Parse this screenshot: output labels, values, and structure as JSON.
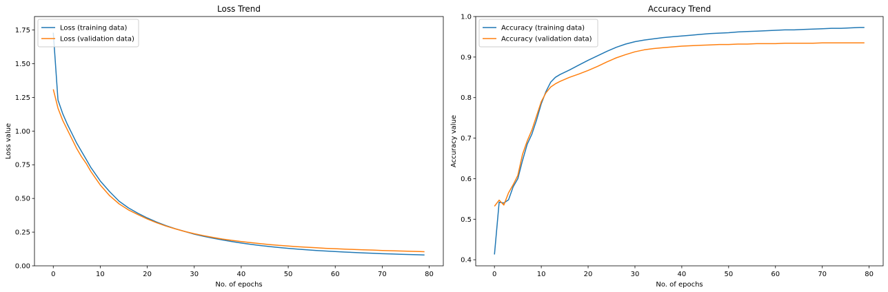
{
  "chart_data": [
    {
      "type": "line",
      "title": "Loss Trend",
      "xlabel": "No. of epochs",
      "ylabel": "Loss value",
      "xlim": [
        -4,
        83
      ],
      "ylim": [
        0,
        1.85
      ],
      "xticks": [
        "0",
        "10",
        "20",
        "30",
        "40",
        "50",
        "60",
        "70",
        "80"
      ],
      "yticks": [
        "0.00",
        "0.25",
        "0.50",
        "0.75",
        "1.00",
        "1.25",
        "1.50",
        "1.75"
      ],
      "legend_position": "upper-left",
      "grid": false,
      "x_points": [
        0,
        1,
        2,
        3,
        4,
        5,
        6,
        7,
        8,
        9,
        10,
        12,
        14,
        16,
        18,
        20,
        22,
        24,
        26,
        28,
        30,
        32,
        34,
        36,
        38,
        40,
        42,
        44,
        46,
        48,
        50,
        52,
        54,
        56,
        58,
        60,
        62,
        64,
        66,
        68,
        70,
        72,
        74,
        76,
        78,
        79
      ],
      "series": [
        {
          "name": "Loss (training data)",
          "color": "#1f77b4",
          "values": [
            1.73,
            1.23,
            1.13,
            1.05,
            0.98,
            0.91,
            0.85,
            0.79,
            0.73,
            0.68,
            0.63,
            0.55,
            0.48,
            0.43,
            0.39,
            0.355,
            0.325,
            0.298,
            0.275,
            0.255,
            0.235,
            0.219,
            0.205,
            0.192,
            0.18,
            0.169,
            0.16,
            0.151,
            0.143,
            0.136,
            0.13,
            0.124,
            0.119,
            0.114,
            0.11,
            0.106,
            0.102,
            0.099,
            0.096,
            0.093,
            0.09,
            0.088,
            0.086,
            0.084,
            0.082,
            0.081
          ]
        },
        {
          "name": "Loss (validation data)",
          "color": "#ff7f0e",
          "values": [
            1.31,
            1.17,
            1.08,
            1.01,
            0.94,
            0.87,
            0.81,
            0.76,
            0.7,
            0.65,
            0.6,
            0.52,
            0.46,
            0.415,
            0.38,
            0.348,
            0.32,
            0.295,
            0.274,
            0.255,
            0.238,
            0.224,
            0.211,
            0.199,
            0.189,
            0.18,
            0.172,
            0.165,
            0.158,
            0.152,
            0.147,
            0.142,
            0.138,
            0.134,
            0.13,
            0.127,
            0.124,
            0.121,
            0.119,
            0.117,
            0.114,
            0.112,
            0.11,
            0.108,
            0.106,
            0.105
          ]
        }
      ]
    },
    {
      "type": "line",
      "title": "Accuracy Trend",
      "xlabel": "No. of epochs",
      "ylabel": "Accuracy value",
      "xlim": [
        -4,
        83
      ],
      "ylim": [
        0.385,
        1.0
      ],
      "xticks": [
        "0",
        "10",
        "20",
        "30",
        "40",
        "50",
        "60",
        "70",
        "80"
      ],
      "yticks": [
        "0.4",
        "0.5",
        "0.6",
        "0.7",
        "0.8",
        "0.9",
        "1.0"
      ],
      "legend_position": "upper-left",
      "grid": false,
      "x_points": [
        0,
        1,
        2,
        3,
        4,
        5,
        6,
        7,
        8,
        9,
        10,
        11,
        12,
        13,
        14,
        16,
        18,
        20,
        22,
        24,
        26,
        28,
        30,
        32,
        34,
        36,
        38,
        40,
        42,
        44,
        46,
        48,
        50,
        52,
        54,
        56,
        58,
        60,
        62,
        64,
        66,
        68,
        70,
        72,
        74,
        76,
        78,
        79
      ],
      "series": [
        {
          "name": "Accuracy (training data)",
          "color": "#1f77b4",
          "values": [
            0.413,
            0.542,
            0.54,
            0.548,
            0.58,
            0.6,
            0.645,
            0.685,
            0.71,
            0.745,
            0.785,
            0.815,
            0.838,
            0.85,
            0.857,
            0.868,
            0.88,
            0.892,
            0.903,
            0.914,
            0.924,
            0.932,
            0.938,
            0.942,
            0.945,
            0.948,
            0.95,
            0.952,
            0.954,
            0.956,
            0.958,
            0.959,
            0.96,
            0.962,
            0.963,
            0.964,
            0.965,
            0.966,
            0.967,
            0.967,
            0.968,
            0.969,
            0.97,
            0.971,
            0.971,
            0.972,
            0.973,
            0.973
          ]
        },
        {
          "name": "Accuracy (validation data)",
          "color": "#ff7f0e",
          "values": [
            0.532,
            0.547,
            0.535,
            0.565,
            0.585,
            0.608,
            0.66,
            0.693,
            0.72,
            0.755,
            0.79,
            0.812,
            0.826,
            0.834,
            0.84,
            0.85,
            0.858,
            0.867,
            0.877,
            0.888,
            0.898,
            0.906,
            0.913,
            0.918,
            0.921,
            0.923,
            0.925,
            0.927,
            0.928,
            0.929,
            0.93,
            0.931,
            0.931,
            0.932,
            0.932,
            0.933,
            0.933,
            0.933,
            0.934,
            0.934,
            0.934,
            0.934,
            0.935,
            0.935,
            0.935,
            0.935,
            0.935,
            0.935
          ]
        }
      ]
    }
  ]
}
